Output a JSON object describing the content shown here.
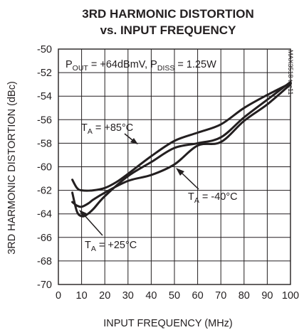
{
  "chart_data": {
    "type": "line",
    "title_line1": "3RD HARMONIC DISTORTION",
    "title_line2": "vs. INPUT FREQUENCY",
    "xlabel": "INPUT FREQUENCY (MHz)",
    "ylabel": "3RD HARMONIC DISTORTION (dBc)",
    "xlim": [
      0,
      100
    ],
    "ylim": [
      -70,
      -50
    ],
    "x_ticks": [
      0,
      10,
      20,
      30,
      40,
      50,
      60,
      70,
      80,
      90,
      100
    ],
    "y_ticks": [
      -50,
      -52,
      -54,
      -56,
      -58,
      -60,
      -62,
      -64,
      -66,
      -68,
      -70
    ],
    "grid": true,
    "conditions": {
      "pout_main": "P",
      "pout_sub": "OUT",
      "pout_value": " = +64dBmV, P",
      "pdiss_sub": "DISS",
      "pdiss_value": " = 1.25W"
    },
    "part_number": "MAX3518 toc11",
    "series": [
      {
        "name": "T_A = +85°C",
        "label_main": "T",
        "label_sub": "A",
        "label_value": " = +85°C",
        "x": [
          6,
          8,
          10,
          15,
          20,
          25,
          30,
          40,
          50,
          60,
          70,
          80,
          90,
          100
        ],
        "y": [
          -61.1,
          -61.8,
          -62.0,
          -62.0,
          -61.8,
          -61.3,
          -60.6,
          -59.1,
          -57.8,
          -57.1,
          -56.4,
          -55.0,
          -53.9,
          -52.9
        ]
      },
      {
        "name": "T_A = -40°C",
        "label_main": "T",
        "label_sub": "A",
        "label_value": " = -40°C",
        "x": [
          6,
          8,
          10,
          13,
          15,
          20,
          30,
          40,
          50,
          60,
          70,
          80,
          90,
          100
        ],
        "y": [
          -63.0,
          -63.3,
          -63.4,
          -63.1,
          -62.8,
          -62.2,
          -61.2,
          -60.7,
          -59.8,
          -58.2,
          -57.9,
          -56.1,
          -54.7,
          -53.0
        ]
      },
      {
        "name": "T_A = +25°C",
        "label_main": "T",
        "label_sub": "A",
        "label_value": " = +25°C",
        "x": [
          6,
          8,
          10,
          12,
          15,
          20,
          30,
          40,
          50,
          60,
          70,
          80,
          90,
          100
        ],
        "y": [
          -62.2,
          -63.8,
          -64.2,
          -64.1,
          -63.6,
          -62.5,
          -60.8,
          -59.6,
          -58.4,
          -58.0,
          -57.5,
          -55.8,
          -54.3,
          -52.8
        ]
      }
    ]
  }
}
